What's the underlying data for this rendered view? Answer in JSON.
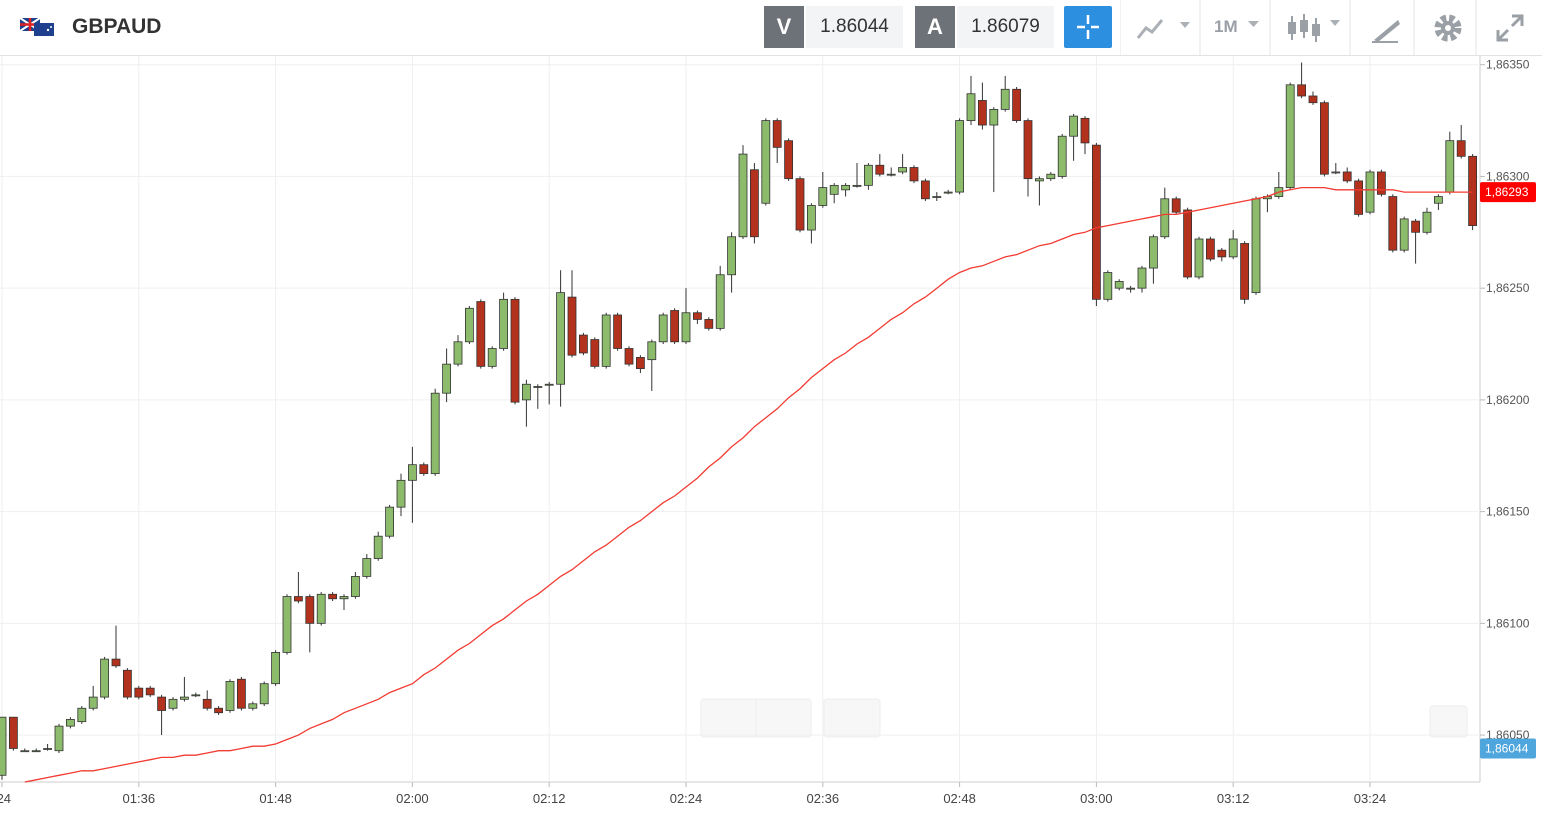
{
  "header": {
    "symbol": "GBPAUD",
    "bid_label": "V",
    "bid": "1.86044",
    "ask_label": "A",
    "ask": "1.86079",
    "timeframe": "1M"
  },
  "chart_data": {
    "type": "candlestick",
    "x": [
      "01:24",
      "01:25",
      "01:26",
      "01:27",
      "01:28",
      "01:29",
      "01:30",
      "01:31",
      "01:32",
      "01:33",
      "01:34",
      "01:35",
      "01:36",
      "01:37",
      "01:38",
      "01:39",
      "01:40",
      "01:41",
      "01:42",
      "01:43",
      "01:44",
      "01:45",
      "01:46",
      "01:47",
      "01:48",
      "01:49",
      "01:50",
      "01:51",
      "01:52",
      "01:53",
      "01:54",
      "01:55",
      "01:56",
      "01:57",
      "01:58",
      "01:59",
      "02:00",
      "02:01",
      "02:02",
      "02:03",
      "02:04",
      "02:05",
      "02:06",
      "02:07",
      "02:08",
      "02:09",
      "02:10",
      "02:11",
      "02:12",
      "02:13",
      "02:14",
      "02:15",
      "02:16",
      "02:17",
      "02:18",
      "02:19",
      "02:20",
      "02:21",
      "02:22",
      "02:23",
      "02:24",
      "02:25",
      "02:26",
      "02:27",
      "02:28",
      "02:29",
      "02:30",
      "02:31",
      "02:32",
      "02:33",
      "02:34",
      "02:35",
      "02:36",
      "02:37",
      "02:38",
      "02:39",
      "02:40",
      "02:41",
      "02:42",
      "02:43",
      "02:44",
      "02:45",
      "02:46",
      "02:47",
      "02:48",
      "02:49",
      "02:50",
      "02:51",
      "02:52",
      "02:53",
      "02:54",
      "02:55",
      "02:56",
      "02:57",
      "02:58",
      "02:59",
      "03:00",
      "03:01",
      "03:02",
      "03:03",
      "03:04",
      "03:05",
      "03:06",
      "03:07",
      "03:08",
      "03:09",
      "03:10",
      "03:11",
      "03:12",
      "03:13",
      "03:14",
      "03:15",
      "03:16",
      "03:17",
      "03:18",
      "03:19",
      "03:20",
      "03:21",
      "03:22",
      "03:23",
      "03:24",
      "03:25",
      "03:26",
      "03:27",
      "03:28",
      "03:29",
      "03:30",
      "03:31",
      "03:32",
      "03:33"
    ],
    "open": [
      1.86032,
      1.86058,
      1.86043,
      1.86043,
      1.86044,
      1.86043,
      1.86054,
      1.86056,
      1.86062,
      1.86067,
      1.86084,
      1.86079,
      1.86071,
      1.86071,
      1.86067,
      1.86062,
      1.86066,
      1.86068,
      1.86066,
      1.86062,
      1.86061,
      1.86075,
      1.86062,
      1.86064,
      1.86073,
      1.86087,
      1.86112,
      1.86112,
      1.861,
      1.86113,
      1.86111,
      1.86112,
      1.86121,
      1.86129,
      1.86139,
      1.86152,
      1.86164,
      1.86171,
      1.86167,
      1.86203,
      1.86216,
      1.86226,
      1.86244,
      1.86215,
      1.86223,
      1.86245,
      1.862,
      1.86206,
      1.86207,
      1.86207,
      1.86246,
      1.86229,
      1.86227,
      1.86215,
      1.86238,
      1.86223,
      1.86219,
      1.86218,
      1.86226,
      1.8624,
      1.86226,
      1.86239,
      1.86236,
      1.86232,
      1.86256,
      1.86273,
      1.86303,
      1.86288,
      1.86325,
      1.86316,
      1.86299,
      1.86276,
      1.86287,
      1.86292,
      1.86294,
      1.86296,
      1.86296,
      1.86305,
      1.86301,
      1.86302,
      1.86304,
      1.86298,
      1.86291,
      1.86293,
      1.86293,
      1.86325,
      1.86334,
      1.86323,
      1.8633,
      1.86339,
      1.86325,
      1.86298,
      1.86299,
      1.863,
      1.86318,
      1.86326,
      1.86314,
      1.86245,
      1.8625,
      1.8625,
      1.8625,
      1.86259,
      1.86273,
      1.8629,
      1.86285,
      1.86255,
      1.86272,
      1.86267,
      1.86264,
      1.8627,
      1.86248,
      1.8629,
      1.86291,
      1.86295,
      1.86341,
      1.86336,
      1.86333,
      1.86302,
      1.86302,
      1.86298,
      1.86284,
      1.86302,
      1.86291,
      1.86267,
      1.8628,
      1.86275,
      1.86288,
      1.86293,
      1.86316,
      1.86309
    ],
    "high": [
      1.86058,
      1.86058,
      1.86044,
      1.86044,
      1.86046,
      1.86055,
      1.86058,
      1.86063,
      1.86072,
      1.86085,
      1.86099,
      1.8608,
      1.86072,
      1.86072,
      1.86068,
      1.86067,
      1.86076,
      1.86069,
      1.8607,
      1.86063,
      1.86075,
      1.86076,
      1.86065,
      1.86074,
      1.86088,
      1.86113,
      1.86123,
      1.86113,
      1.86114,
      1.86114,
      1.86113,
      1.86123,
      1.86131,
      1.86141,
      1.86153,
      1.86167,
      1.86179,
      1.86172,
      1.86205,
      1.86223,
      1.86229,
      1.86242,
      1.86245,
      1.86224,
      1.86248,
      1.86246,
      1.86209,
      1.86207,
      1.86208,
      1.86258,
      1.86258,
      1.8623,
      1.86228,
      1.86239,
      1.86239,
      1.86224,
      1.8622,
      1.86227,
      1.86239,
      1.86241,
      1.8625,
      1.8624,
      1.86237,
      1.8626,
      1.86275,
      1.86314,
      1.86306,
      1.86326,
      1.86326,
      1.86317,
      1.863,
      1.86288,
      1.86302,
      1.86297,
      1.86297,
      1.86306,
      1.86306,
      1.8631,
      1.86304,
      1.8631,
      1.86305,
      1.86299,
      1.86293,
      1.86294,
      1.86326,
      1.86345,
      1.86342,
      1.86331,
      1.86345,
      1.8634,
      1.86326,
      1.863,
      1.86302,
      1.86319,
      1.86328,
      1.86327,
      1.86315,
      1.86258,
      1.86254,
      1.86251,
      1.8626,
      1.86274,
      1.86295,
      1.86291,
      1.86286,
      1.86273,
      1.86273,
      1.86268,
      1.86276,
      1.86271,
      1.86291,
      1.86292,
      1.86302,
      1.86342,
      1.86351,
      1.86338,
      1.86334,
      1.86306,
      1.86304,
      1.86299,
      1.86303,
      1.86303,
      1.86292,
      1.86282,
      1.86281,
      1.86286,
      1.86292,
      1.8632,
      1.86323,
      1.8631
    ],
    "low": [
      1.8603,
      1.86043,
      1.86043,
      1.86043,
      1.86043,
      1.86042,
      1.86053,
      1.86055,
      1.86061,
      1.86066,
      1.8608,
      1.86066,
      1.86066,
      1.86067,
      1.8605,
      1.86061,
      1.86065,
      1.86067,
      1.86061,
      1.86059,
      1.8606,
      1.86061,
      1.86061,
      1.86063,
      1.86072,
      1.86086,
      1.86109,
      1.86087,
      1.86099,
      1.8611,
      1.86106,
      1.86111,
      1.8612,
      1.86128,
      1.86138,
      1.86148,
      1.86145,
      1.86166,
      1.86166,
      1.86199,
      1.86215,
      1.86225,
      1.86214,
      1.86214,
      1.86222,
      1.86198,
      1.86188,
      1.86196,
      1.86198,
      1.86197,
      1.86219,
      1.8622,
      1.86214,
      1.86214,
      1.86222,
      1.86215,
      1.86212,
      1.86204,
      1.86225,
      1.86225,
      1.86225,
      1.86234,
      1.86231,
      1.86231,
      1.86248,
      1.86272,
      1.8627,
      1.86287,
      1.86306,
      1.86298,
      1.86275,
      1.8627,
      1.86286,
      1.86288,
      1.86291,
      1.86295,
      1.86294,
      1.863,
      1.863,
      1.86301,
      1.86297,
      1.86289,
      1.86289,
      1.86292,
      1.86292,
      1.86323,
      1.86321,
      1.86293,
      1.86329,
      1.86324,
      1.86291,
      1.86287,
      1.86298,
      1.86299,
      1.86307,
      1.8631,
      1.86242,
      1.86244,
      1.86249,
      1.86248,
      1.86248,
      1.86252,
      1.86272,
      1.86283,
      1.86254,
      1.86254,
      1.86262,
      1.86262,
      1.86263,
      1.86243,
      1.86247,
      1.86284,
      1.8629,
      1.86294,
      1.86335,
      1.86332,
      1.863,
      1.86301,
      1.86297,
      1.86282,
      1.86283,
      1.86291,
      1.86266,
      1.86266,
      1.86261,
      1.86274,
      1.86285,
      1.86292,
      1.86308,
      1.86276
    ],
    "close": [
      1.86058,
      1.86044,
      1.86043,
      1.86043,
      1.86044,
      1.86054,
      1.86057,
      1.86062,
      1.86067,
      1.86084,
      1.86081,
      1.86067,
      1.86067,
      1.86068,
      1.86061,
      1.86066,
      1.86067,
      1.86068,
      1.86062,
      1.8606,
      1.86074,
      1.86062,
      1.86064,
      1.86073,
      1.86087,
      1.86112,
      1.8611,
      1.861,
      1.86113,
      1.86111,
      1.86112,
      1.86121,
      1.86129,
      1.86139,
      1.86152,
      1.86164,
      1.86171,
      1.86167,
      1.86203,
      1.86216,
      1.86226,
      1.86241,
      1.86215,
      1.86223,
      1.86245,
      1.86199,
      1.86207,
      1.86206,
      1.86207,
      1.86248,
      1.8622,
      1.86221,
      1.86215,
      1.86238,
      1.86223,
      1.86216,
      1.86214,
      1.86226,
      1.86238,
      1.86226,
      1.86239,
      1.86236,
      1.86232,
      1.86256,
      1.86273,
      1.8631,
      1.86273,
      1.86325,
      1.86313,
      1.86299,
      1.86276,
      1.86287,
      1.86295,
      1.86296,
      1.86296,
      1.86296,
      1.86305,
      1.86301,
      1.86301,
      1.86304,
      1.86298,
      1.8629,
      1.86291,
      1.86293,
      1.86325,
      1.86337,
      1.86323,
      1.8633,
      1.86339,
      1.86325,
      1.86299,
      1.86299,
      1.86301,
      1.86318,
      1.86327,
      1.86315,
      1.86245,
      1.86257,
      1.86253,
      1.8625,
      1.86259,
      1.86273,
      1.8629,
      1.86284,
      1.86255,
      1.86272,
      1.86263,
      1.86264,
      1.86272,
      1.86245,
      1.8629,
      1.86291,
      1.86295,
      1.86341,
      1.86336,
      1.86333,
      1.86301,
      1.86302,
      1.86298,
      1.86283,
      1.86302,
      1.86292,
      1.86267,
      1.86281,
      1.86275,
      1.86284,
      1.86291,
      1.86316,
      1.86309,
      1.86278
    ],
    "up_color": "#8cbb6c",
    "down_color": "#b3321d",
    "ma": {
      "color": "#f23b32",
      "values": [
        null,
        null,
        1.86029,
        1.8603,
        1.86031,
        1.86032,
        1.86033,
        1.86034,
        1.86034,
        1.86035,
        1.86036,
        1.86037,
        1.86038,
        1.86039,
        1.8604,
        1.8604,
        1.86041,
        1.86041,
        1.86042,
        1.86043,
        1.86043,
        1.86044,
        1.86045,
        1.86045,
        1.86046,
        1.86048,
        1.8605,
        1.86053,
        1.86055,
        1.86057,
        1.8606,
        1.86062,
        1.86064,
        1.86066,
        1.86069,
        1.86071,
        1.86073,
        1.86077,
        1.8608,
        1.86084,
        1.86088,
        1.86091,
        1.86095,
        1.86099,
        1.86102,
        1.86106,
        1.8611,
        1.86113,
        1.86117,
        1.86121,
        1.86124,
        1.86128,
        1.86132,
        1.86135,
        1.86139,
        1.86143,
        1.86146,
        1.8615,
        1.86154,
        1.86157,
        1.86161,
        1.86165,
        1.8617,
        1.86174,
        1.86179,
        1.86183,
        1.86188,
        1.86192,
        1.86196,
        1.86201,
        1.86205,
        1.8621,
        1.86214,
        1.86218,
        1.86221,
        1.86225,
        1.86228,
        1.86232,
        1.86236,
        1.86239,
        1.86243,
        1.86246,
        1.8625,
        1.86254,
        1.86257,
        1.86259,
        1.8626,
        1.86262,
        1.86264,
        1.86265,
        1.86267,
        1.86269,
        1.8627,
        1.86272,
        1.86274,
        1.86275,
        1.86277,
        1.86278,
        1.86279,
        1.8628,
        1.86281,
        1.86282,
        1.86283,
        1.86283,
        1.86284,
        1.86285,
        1.86286,
        1.86287,
        1.86288,
        1.86289,
        1.8629,
        1.86291,
        1.86293,
        1.86294,
        1.86295,
        1.86295,
        1.86295,
        1.86294,
        1.86294,
        1.86294,
        1.86294,
        1.86294,
        1.86294,
        1.86293,
        1.86293,
        1.86293,
        1.86293,
        1.86293,
        1.86293,
        1.86293
      ]
    },
    "ma_tag": {
      "value": 1.86293,
      "label": "1,86293",
      "color": "#ff0000"
    },
    "price_tag": {
      "value": 1.86044,
      "label": "1,86044",
      "color": "#4ea6dc"
    },
    "ylim": [
      1.86029,
      1.86353
    ],
    "yticks": [
      {
        "value": 1.8605,
        "label": "1,86050"
      },
      {
        "value": 1.861,
        "label": "1,86100"
      },
      {
        "value": 1.8615,
        "label": "1,86150"
      },
      {
        "value": 1.862,
        "label": "1,86200"
      },
      {
        "value": 1.8625,
        "label": "1,86250"
      },
      {
        "value": 1.863,
        "label": "1,86300"
      },
      {
        "value": 1.8635,
        "label": "1,86350"
      }
    ],
    "xticks": [
      {
        "value": "01:24",
        "label": ":24"
      },
      "01:36",
      "01:48",
      "02:00",
      "02:12",
      "02:24",
      "02:36",
      "02:48",
      "03:00",
      "03:12",
      "03:24"
    ],
    "grid": true
  }
}
